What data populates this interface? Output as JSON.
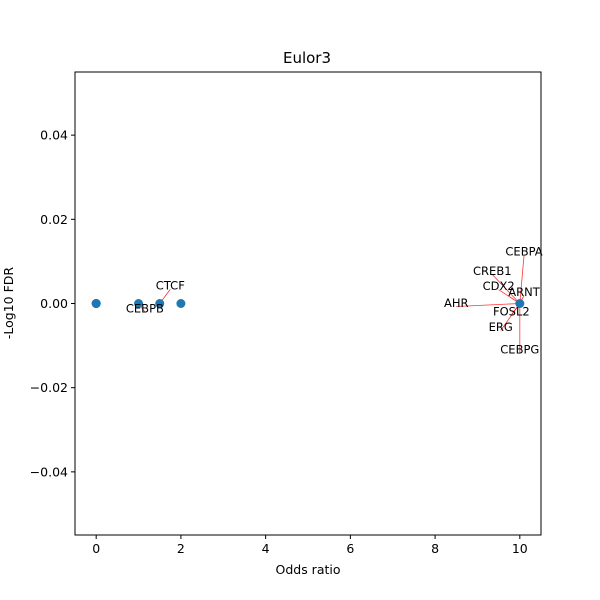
{
  "chart_data": {
    "type": "scatter",
    "title": "Eulor3",
    "xlabel": "Odds ratio",
    "ylabel": "-Log10 FDR",
    "xlim": [
      -0.5,
      10.5
    ],
    "ylim": [
      -0.055,
      0.055
    ],
    "xticks": [
      0,
      2,
      4,
      6,
      8,
      10
    ],
    "xtick_labels": [
      "0",
      "2",
      "4",
      "6",
      "8",
      "10"
    ],
    "yticks": [
      -0.04,
      -0.02,
      0.0,
      0.02,
      0.04
    ],
    "ytick_labels": [
      "−0.04",
      "−0.02",
      "0.00",
      "0.02",
      "0.04"
    ],
    "grid": false,
    "marker_color": "#1f77b4",
    "annotation_line_color": "#ff0000",
    "points": [
      {
        "x": 0,
        "y": 0
      },
      {
        "x": 0,
        "y": 0
      },
      {
        "x": 0,
        "y": 0
      },
      {
        "x": 1,
        "y": 0
      },
      {
        "x": 1.5,
        "y": 0
      },
      {
        "x": 2,
        "y": 0
      },
      {
        "x": 10,
        "y": 0
      }
    ],
    "annotations": [
      {
        "text": "CTCF",
        "x": 1.5,
        "y": 0,
        "tx": 1.75,
        "ty": 0.0041,
        "anchor": "middle"
      },
      {
        "text": "CEBPB",
        "x": 1,
        "y": 0,
        "tx": 1.15,
        "ty": -0.0013,
        "anchor": "middle"
      },
      {
        "text": "CEBPA",
        "x": 10,
        "y": 0,
        "tx": 10.1,
        "ty": 0.0122,
        "anchor": "middle"
      },
      {
        "text": "CREB1",
        "x": 10,
        "y": 0,
        "tx": 9.35,
        "ty": 0.0076,
        "anchor": "middle"
      },
      {
        "text": "CDX2",
        "x": 10,
        "y": 0,
        "tx": 9.5,
        "ty": 0.004,
        "anchor": "middle"
      },
      {
        "text": "ARNT",
        "x": 10,
        "y": 0,
        "tx": 10.1,
        "ty": 0.0026,
        "anchor": "middle"
      },
      {
        "text": "AHR",
        "x": 10,
        "y": 0,
        "tx": 8.5,
        "ty": 0.0,
        "anchor": "middle"
      },
      {
        "text": "FOSL2",
        "x": 10,
        "y": 0,
        "tx": 9.8,
        "ty": -0.002,
        "anchor": "middle"
      },
      {
        "text": "ERG",
        "x": 10,
        "y": 0,
        "tx": 9.55,
        "ty": -0.0057,
        "anchor": "middle"
      },
      {
        "text": "CEBPG",
        "x": 10,
        "y": 0,
        "tx": 10.0,
        "ty": -0.011,
        "anchor": "middle"
      }
    ]
  }
}
